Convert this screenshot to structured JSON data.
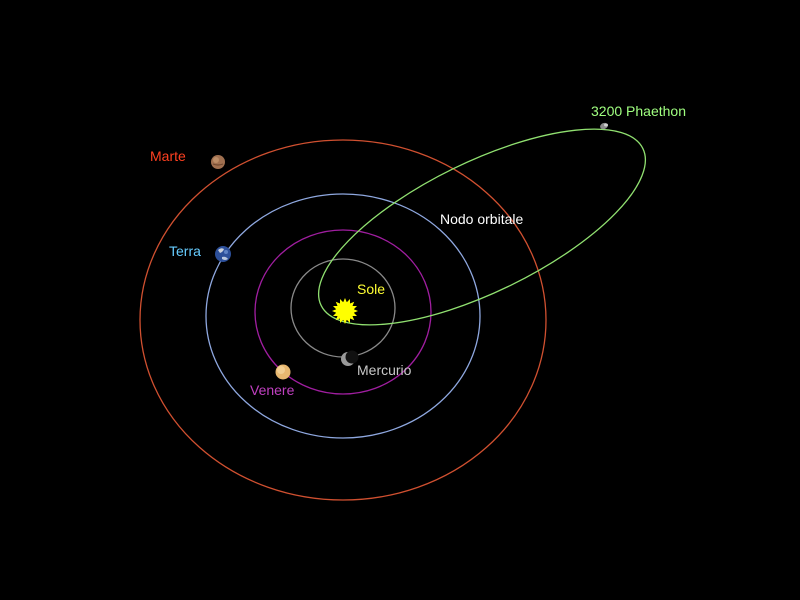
{
  "labels": {
    "sun": "Sole",
    "mercury": "Mercurio",
    "venus": "Venere",
    "earth": "Terra",
    "mars": "Marte",
    "asteroid": "3200  Phaethon",
    "node": "Nodo orbitale"
  },
  "colors": {
    "background": "#000000",
    "sun": "#ffff00",
    "sun_label": "#ffff33",
    "mercury_orbit": "#8a8a8a",
    "mercury_label": "#c8c8c8",
    "venus_orbit": "#a01ea0",
    "venus_label": "#c040c0",
    "earth_orbit": "#8fa8e0",
    "earth_label": "#66ccff",
    "mars_orbit": "#d05030",
    "mars_label": "#ff4020",
    "asteroid_orbit": "#90e070",
    "asteroid_label": "#a0ff80",
    "node_label": "#ffffff"
  }
}
